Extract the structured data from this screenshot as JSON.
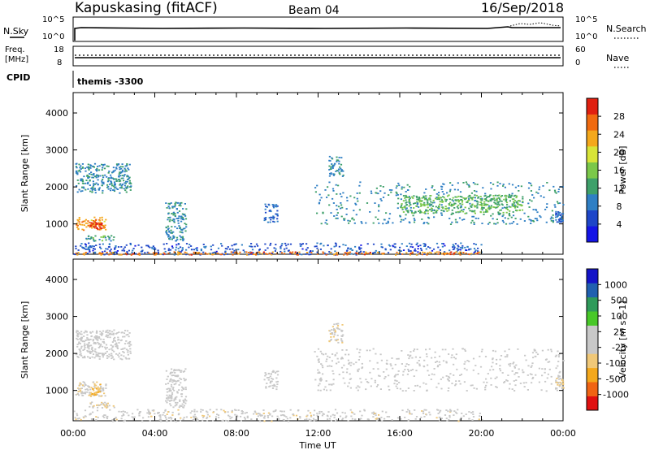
{
  "header": {
    "station": "Kapuskasing (fitACF)",
    "beam": "Beam 04",
    "date": "16/Sep/2018"
  },
  "strips": {
    "nsky_label": "N.Sky",
    "nsky_ticks": [
      "10^5",
      "10^0"
    ],
    "nsearch_label": "N.Search",
    "nsearch_ticks": [
      "10^5",
      "10^0"
    ],
    "freq_label": [
      "Freq.",
      "[MHz]"
    ],
    "freq_ticks": [
      "18",
      "8"
    ],
    "nave_label": "Nave",
    "nave_ticks": [
      "60",
      "0"
    ],
    "cpid_label": "CPID",
    "cpid_text": "themis -3300"
  },
  "x_axis": {
    "label": "Time UT",
    "ticks": [
      "00:00",
      "04:00",
      "08:00",
      "12:00",
      "16:00",
      "20:00",
      "00:00"
    ]
  },
  "colors": {
    "power_scale": [
      "#1414e6",
      "#1e46c8",
      "#2f7fc4",
      "#3ea06a",
      "#7bc84a",
      "#d8e438",
      "#f4a81c",
      "#f06a10",
      "#e02010"
    ],
    "velocity_scale": [
      "#e01010",
      "#f06414",
      "#f4a81c",
      "#f0c878",
      "#c8c8c8",
      "#c8c8c8",
      "#48c828",
      "#2f9a5a",
      "#2060b0",
      "#1414c8"
    ]
  },
  "chart_data": [
    {
      "type": "heatmap",
      "title": "",
      "ylabel": "Slant Range [km]",
      "xlabel": "",
      "xlim": [
        0,
        24
      ],
      "ylim": [
        180,
        4550
      ],
      "yticks": [
        "1000",
        "2000",
        "3000",
        "4000"
      ],
      "colorbar": {
        "label": "Power [dB]",
        "ticks": [
          "4",
          "8",
          "12",
          "16",
          "20",
          "24",
          "28"
        ],
        "range": [
          0,
          32
        ]
      },
      "regions": [
        {
          "t0": 0.1,
          "t1": 2.8,
          "r0": 1850,
          "r1": 2650,
          "value": 10
        },
        {
          "t0": 0.1,
          "t1": 1.6,
          "r0": 850,
          "r1": 1200,
          "value": 24
        },
        {
          "t0": 0.8,
          "t1": 1.4,
          "r0": 880,
          "r1": 1100,
          "value": 30
        },
        {
          "t0": 0.6,
          "t1": 2.0,
          "r0": 550,
          "r1": 700,
          "value": 12
        },
        {
          "t0": 4.5,
          "t1": 5.5,
          "r0": 550,
          "r1": 1600,
          "value": 10
        },
        {
          "t0": 9.3,
          "t1": 10.0,
          "r0": 1050,
          "r1": 1550,
          "value": 8
        },
        {
          "t0": 11.8,
          "t1": 24.0,
          "r0": 1000,
          "r1": 2150,
          "value": 10
        },
        {
          "t0": 16.0,
          "t1": 22.0,
          "r0": 1300,
          "r1": 1800,
          "value": 14
        },
        {
          "t0": 12.5,
          "t1": 13.2,
          "r0": 2300,
          "r1": 2850,
          "value": 10
        },
        {
          "t0": 23.6,
          "t1": 24.0,
          "r0": 1050,
          "r1": 1350,
          "value": 8
        },
        {
          "t0": 0.0,
          "t1": 20.0,
          "r0": 180,
          "r1": 500,
          "value": 6
        },
        {
          "t0": 0.0,
          "t1": 20.0,
          "r0": 180,
          "r1": 260,
          "value": 26
        }
      ]
    },
    {
      "type": "heatmap",
      "title": "",
      "ylabel": "Slant Range [km]",
      "xlabel": "Time UT",
      "xlim": [
        0,
        24
      ],
      "ylim": [
        180,
        4550
      ],
      "yticks": [
        "1000",
        "2000",
        "3000",
        "4000"
      ],
      "colorbar": {
        "label": "Velocity [m s^-1]",
        "ticks": [
          "-1000",
          "-500",
          "-100",
          "-25",
          "25",
          "100",
          "500",
          "1000"
        ],
        "range": [
          -1000,
          1000
        ]
      },
      "regions": [
        {
          "t0": 0.1,
          "t1": 2.8,
          "r0": 1850,
          "r1": 2650,
          "value": 0
        },
        {
          "t0": 0.1,
          "t1": 1.6,
          "r0": 850,
          "r1": 1250,
          "value": -120
        },
        {
          "t0": 0.8,
          "t1": 1.4,
          "r0": 880,
          "r1": 1200,
          "value": -400
        },
        {
          "t0": 0.6,
          "t1": 2.0,
          "r0": 550,
          "r1": 700,
          "value": -200
        },
        {
          "t0": 4.5,
          "t1": 5.5,
          "r0": 550,
          "r1": 1600,
          "value": 0
        },
        {
          "t0": 9.3,
          "t1": 10.0,
          "r0": 1050,
          "r1": 1550,
          "value": 0
        },
        {
          "t0": 11.8,
          "t1": 24.0,
          "r0": 1000,
          "r1": 2150,
          "value": 0
        },
        {
          "t0": 12.5,
          "t1": 13.2,
          "r0": 2300,
          "r1": 2850,
          "value": -150
        },
        {
          "t0": 23.6,
          "t1": 24.0,
          "r0": 1050,
          "r1": 1350,
          "value": -200
        },
        {
          "t0": 0.0,
          "t1": 20.0,
          "r0": 180,
          "r1": 500,
          "value": -60
        }
      ]
    }
  ]
}
